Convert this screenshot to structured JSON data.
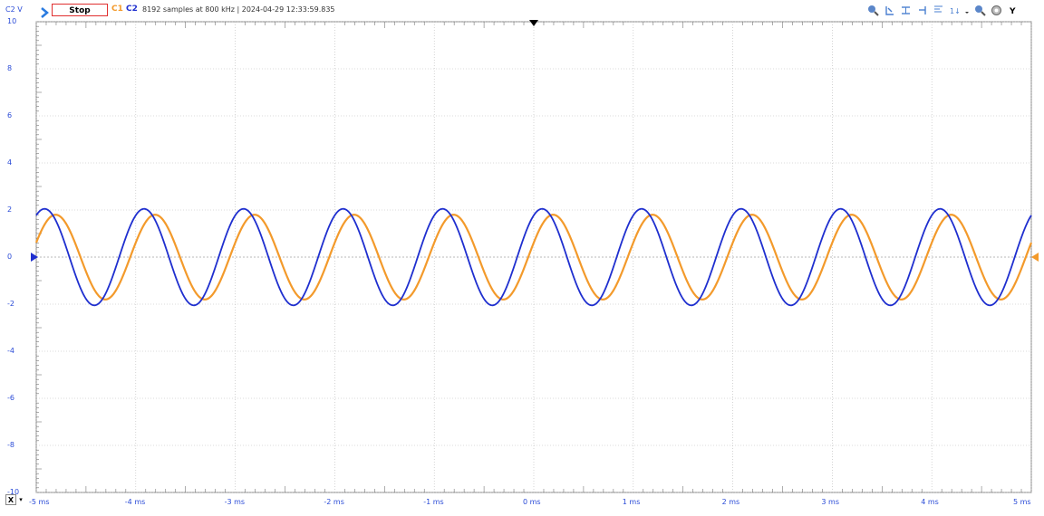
{
  "toolbar": {
    "channel_axis": "C2 V",
    "stop_label": "Stop",
    "c1_label": "C1",
    "c2_label": "C2",
    "status": "8192 samples at 800 kHz  | 2024-04-29 12:33:59.835",
    "tools": [
      "zoom-in-icon",
      "cursor-left-icon",
      "cursor-horizontal-icon",
      "cursor-right-icon",
      "align-top-icon",
      "align-values-icon",
      "dropdown-icon",
      "zoom-out-icon",
      "settings-icon",
      "y-icon"
    ]
  },
  "axis": {
    "y_ticks": [
      "10",
      "8",
      "6",
      "4",
      "2",
      "0",
      "-2",
      "-4",
      "-6",
      "-8",
      "-10"
    ],
    "x_ticks": [
      "-5 ms",
      "-4 ms",
      "-3 ms",
      "-2 ms",
      "-1 ms",
      "0 ms",
      "1 ms",
      "2 ms",
      "3 ms",
      "4 ms",
      "5 ms"
    ],
    "x_button": "X",
    "x_menu": "▾"
  },
  "colors": {
    "c1": "#f39a2b",
    "c2": "#1f2fcf",
    "grid": "#b8b8b8",
    "text": "#2a4bd7"
  },
  "chart_data": {
    "type": "line",
    "xlim": [
      -5,
      5
    ],
    "ylim": [
      -10,
      10
    ],
    "grid": true,
    "series": [
      {
        "name": "C1",
        "color": "#f39a2b",
        "amplitude": 1.8,
        "frequency_khz": 1.0,
        "phase_deg": 20
      },
      {
        "name": "C2",
        "color": "#1f2fcf",
        "amplitude": 2.05,
        "frequency_khz": 1.0,
        "phase_deg": 60
      }
    ]
  }
}
